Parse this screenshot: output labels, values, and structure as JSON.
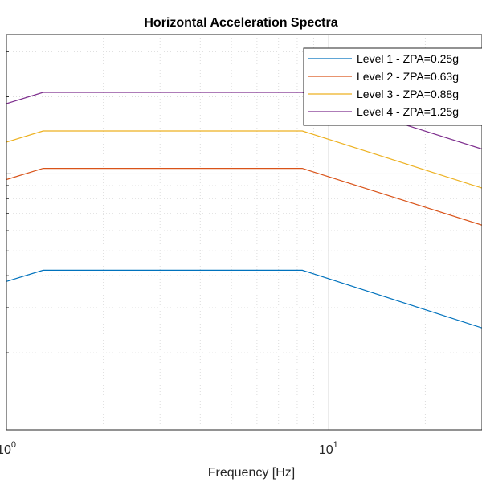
{
  "chart_data": {
    "type": "line",
    "title": "Horizontal Acceleration Spectra",
    "xlabel": "Frequency [Hz]",
    "ylabel": "",
    "xscale": "log",
    "yscale": "log",
    "xlim": [
      1,
      30
    ],
    "ylim": [
      0.1,
      3.5
    ],
    "x_ticks": [
      {
        "base": "10",
        "exp": "0"
      },
      {
        "base": "10",
        "exp": "1"
      }
    ],
    "grid": true,
    "legend_position": "top-right",
    "series": [
      {
        "name": "Level 1 - ZPA=0.25g",
        "color": "#0072BD",
        "x": [
          1,
          1.3,
          8.3,
          30
        ],
        "y": [
          0.38,
          0.42,
          0.42,
          0.25
        ]
      },
      {
        "name": "Level 2 - ZPA=0.63g",
        "color": "#D95319",
        "x": [
          1,
          1.3,
          8.3,
          30
        ],
        "y": [
          0.95,
          1.05,
          1.05,
          0.63
        ]
      },
      {
        "name": "Level 3 - ZPA=0.88g",
        "color": "#EDB120",
        "x": [
          1,
          1.3,
          8.3,
          30
        ],
        "y": [
          1.33,
          1.47,
          1.47,
          0.88
        ]
      },
      {
        "name": "Level 4 - ZPA=1.25g",
        "color": "#7E2F8E",
        "x": [
          1,
          1.3,
          8.3,
          30
        ],
        "y": [
          1.88,
          2.08,
          2.08,
          1.25
        ]
      }
    ]
  }
}
